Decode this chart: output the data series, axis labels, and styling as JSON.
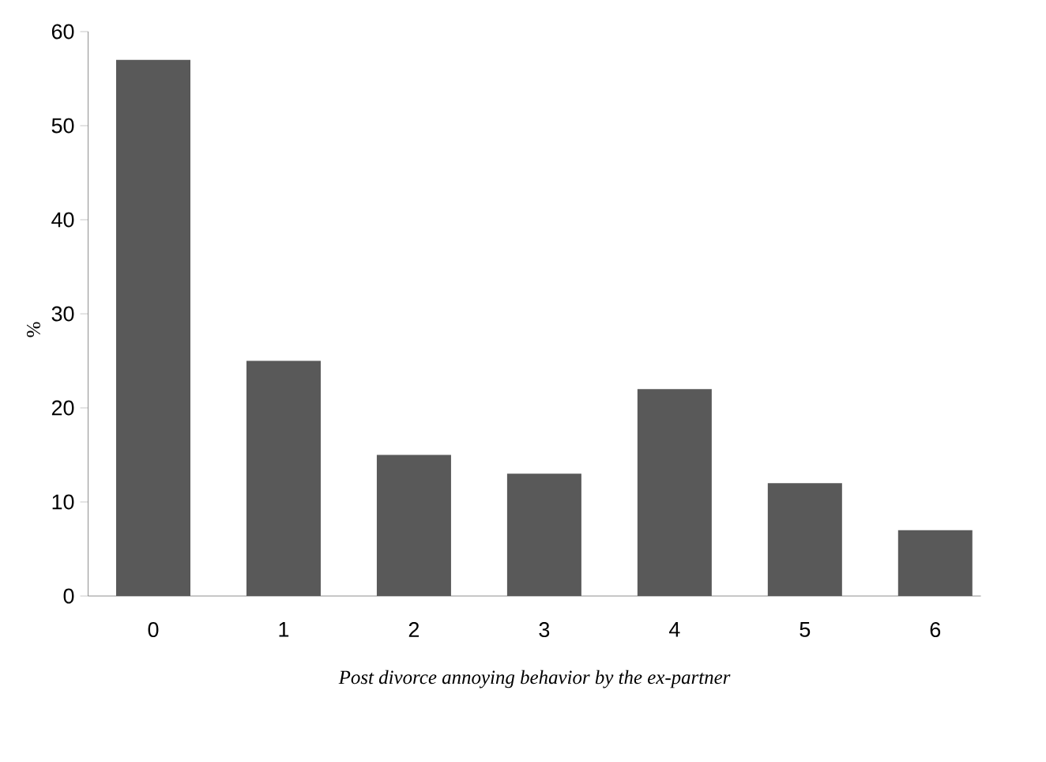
{
  "chart_data": {
    "type": "bar",
    "xlabel": "Post divorce annoying behavior by the ex-partner",
    "ylabel": "%",
    "categories": [
      "0",
      "1",
      "2",
      "3",
      "4",
      "5",
      "6"
    ],
    "values": [
      57,
      25,
      15,
      13,
      22,
      12,
      7
    ],
    "color": "#595959",
    "ylim": [
      0,
      60
    ],
    "yticks": [
      0,
      10,
      20,
      30,
      40,
      50,
      60
    ],
    "grid": false
  }
}
